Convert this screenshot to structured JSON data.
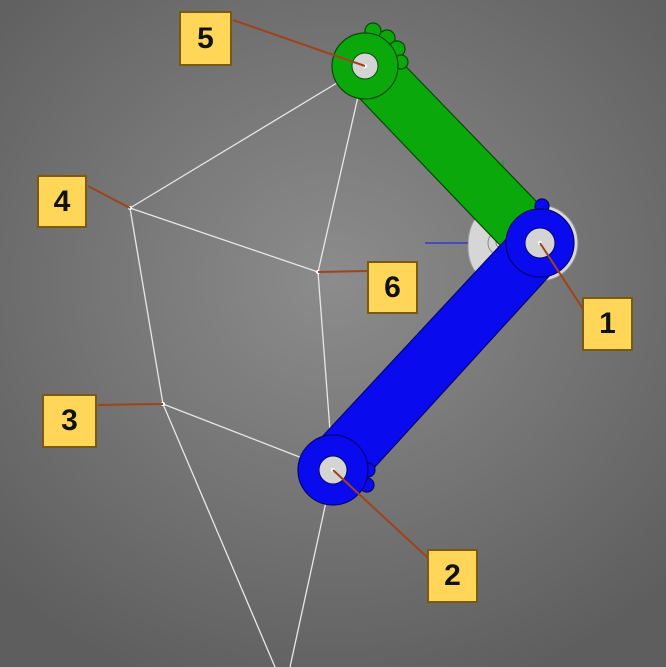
{
  "diagram": {
    "callouts": [
      {
        "id": "1",
        "label": "1"
      },
      {
        "id": "2",
        "label": "2"
      },
      {
        "id": "3",
        "label": "3"
      },
      {
        "id": "4",
        "label": "4"
      },
      {
        "id": "5",
        "label": "5"
      },
      {
        "id": "6",
        "label": "6"
      }
    ],
    "colors": {
      "background": "#7a7a7a",
      "callout_fill": "#ffd658",
      "callout_border": "#7a5a10",
      "leader_line": "#a0421a",
      "green_link": "#0aa80a",
      "blue_link": "#0a0aee",
      "frame_line": "#e8e8e8",
      "pivot_hub": "#d8d8d8"
    }
  }
}
